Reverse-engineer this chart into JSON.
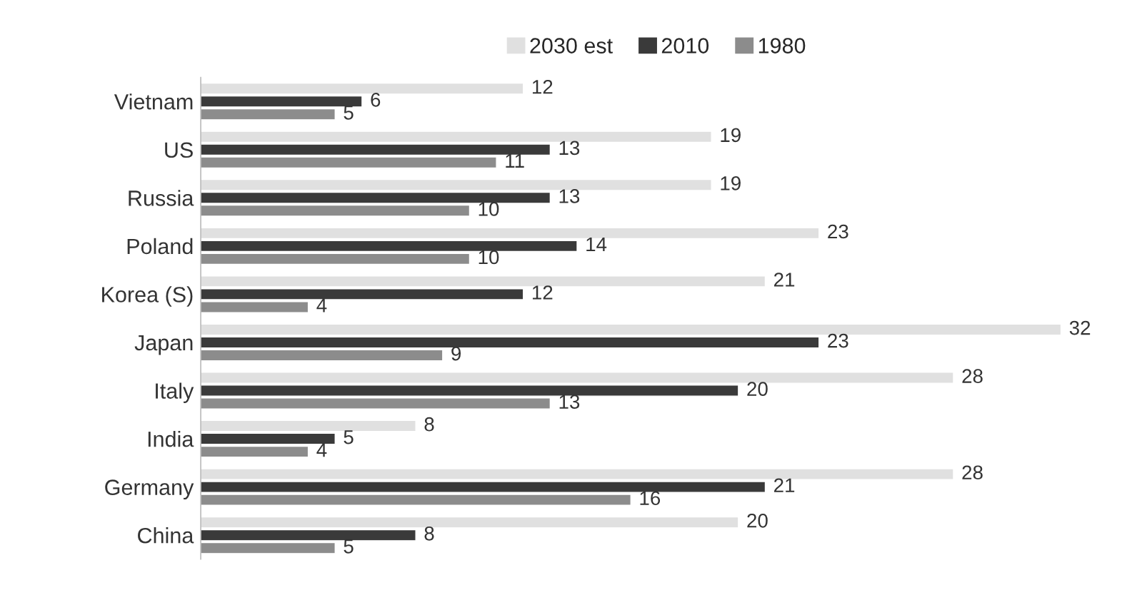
{
  "chart_data": {
    "type": "bar",
    "orientation": "horizontal",
    "categories": [
      "Vietnam",
      "US",
      "Russia",
      "Poland",
      "Korea (S)",
      "Japan",
      "Italy",
      "India",
      "Germany",
      "China"
    ],
    "series": [
      {
        "name": "2030 est",
        "color": "#e0e0e0",
        "values": [
          12,
          19,
          19,
          23,
          21,
          32,
          28,
          8,
          28,
          20
        ]
      },
      {
        "name": "2010",
        "color": "#3a3a3a",
        "values": [
          6,
          13,
          13,
          14,
          12,
          23,
          20,
          5,
          21,
          8
        ]
      },
      {
        "name": "1980",
        "color": "#8c8c8c",
        "values": [
          5,
          11,
          10,
          10,
          4,
          9,
          13,
          4,
          16,
          5
        ]
      }
    ],
    "data_labels": true,
    "legend": "top",
    "grid": false,
    "tick_labels": "y"
  }
}
